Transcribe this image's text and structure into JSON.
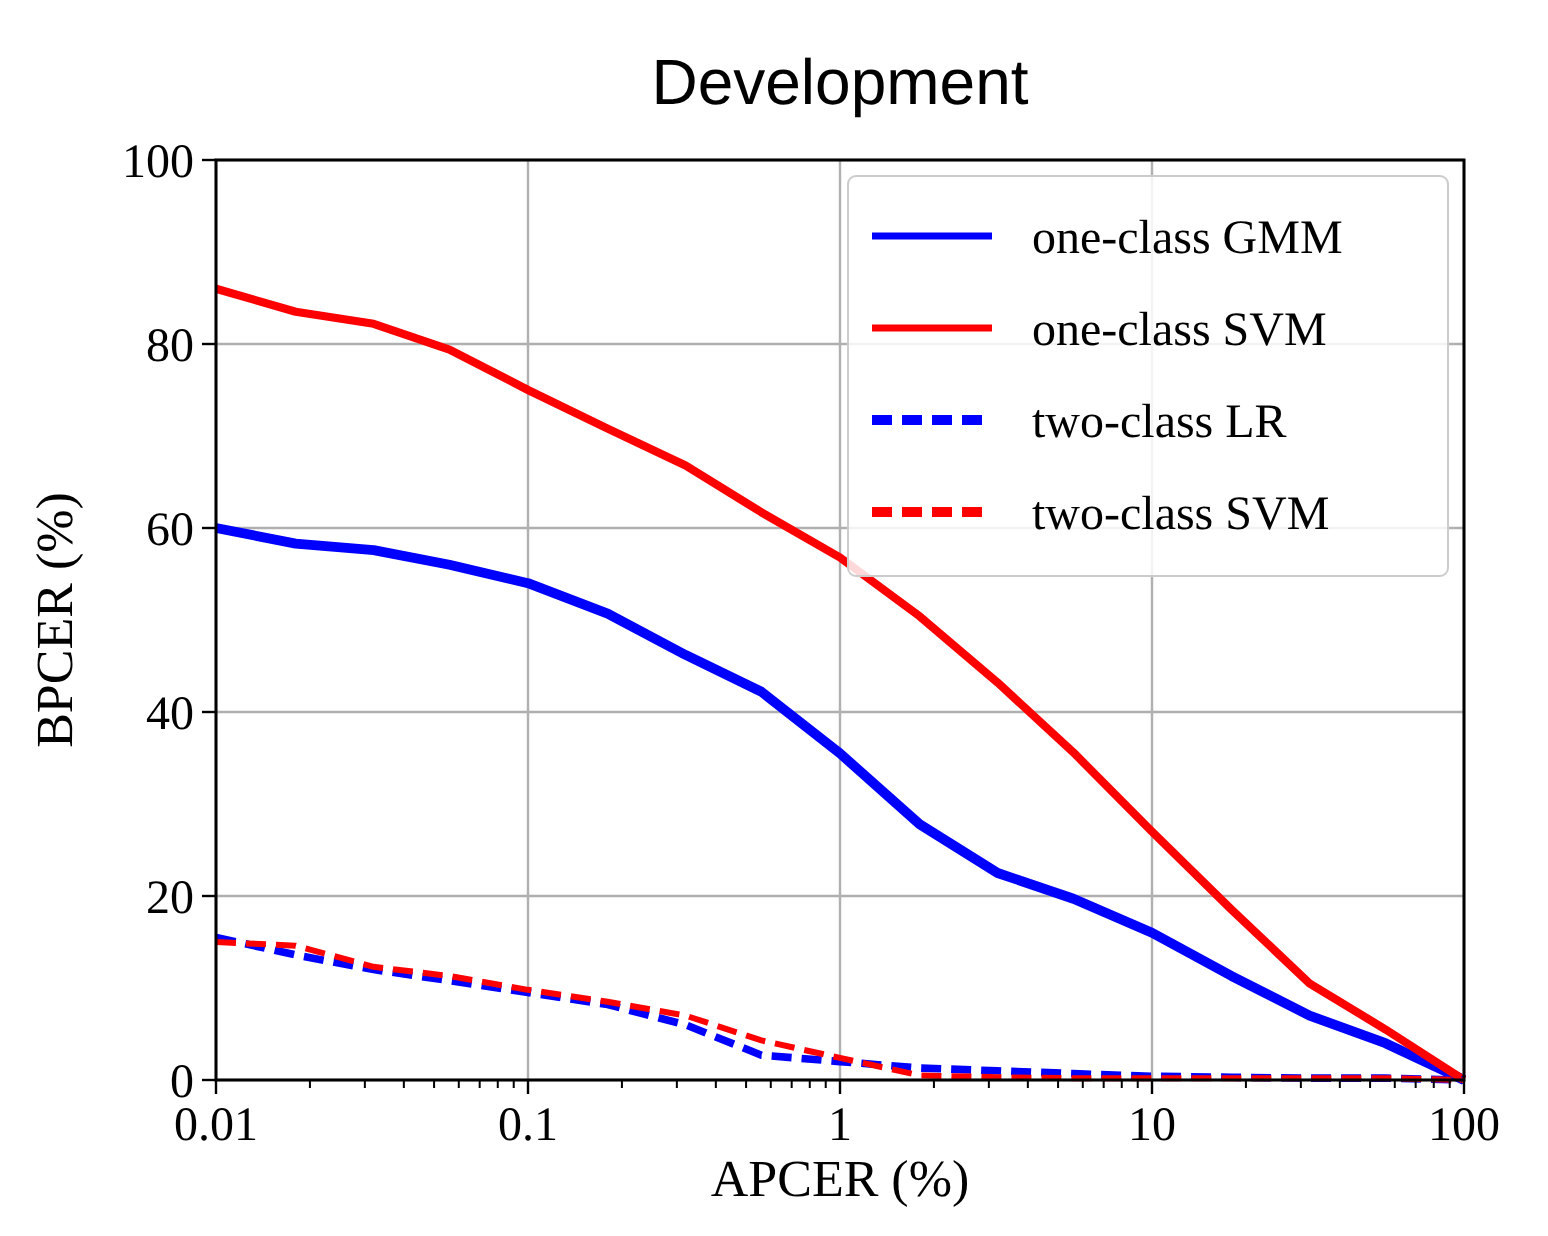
{
  "chart_data": {
    "type": "line",
    "title": "Development",
    "xlabel": "APCER (%)",
    "ylabel": "BPCER (%)",
    "log": "x",
    "x": [
      0.01,
      0.018,
      0.032,
      0.056,
      0.1,
      0.18,
      0.32,
      0.56,
      1,
      1.8,
      3.2,
      5.6,
      10,
      18,
      32,
      56,
      100
    ],
    "xlim": [
      0.01,
      100
    ],
    "xticks": [
      0.01,
      0.1,
      1,
      10,
      100
    ],
    "ylim": [
      0,
      100
    ],
    "yticks": [
      0,
      20,
      40,
      60,
      80,
      100
    ],
    "grid": true,
    "legend": "top right",
    "marker": "none",
    "series": [
      {
        "name": "one-class GMM",
        "color": "#0000ff",
        "line_style": "solid",
        "values": [
          60,
          58.3,
          57.6,
          56,
          54,
          50.7,
          46.2,
          42.2,
          35.5,
          27.8,
          22.5,
          19.7,
          16,
          11.3,
          7,
          4,
          0
        ]
      },
      {
        "name": "one-class SVM",
        "color": "#ff0000",
        "line_style": "solid",
        "values": [
          86,
          83.5,
          82.2,
          79.4,
          75,
          70.8,
          66.8,
          61.7,
          56.8,
          50.4,
          43.2,
          35.6,
          27,
          18.5,
          10.5,
          5.5,
          0
        ]
      },
      {
        "name": "two-class LR",
        "color": "#0000ff",
        "line_style": "dashed",
        "values": [
          15.5,
          13.6,
          12,
          10.8,
          9.5,
          8.2,
          6,
          2.7,
          2,
          1.3,
          1,
          0.7,
          0.4,
          0.3,
          0.2,
          0.2,
          0
        ]
      },
      {
        "name": "two-class SVM",
        "color": "#ff0000",
        "line_style": "dashed",
        "values": [
          15,
          14.6,
          12.3,
          11.3,
          9.8,
          8.5,
          7,
          4.3,
          2.4,
          0.5,
          0.3,
          0.2,
          0.2,
          0.2,
          0.2,
          0.2,
          0
        ]
      }
    ]
  }
}
